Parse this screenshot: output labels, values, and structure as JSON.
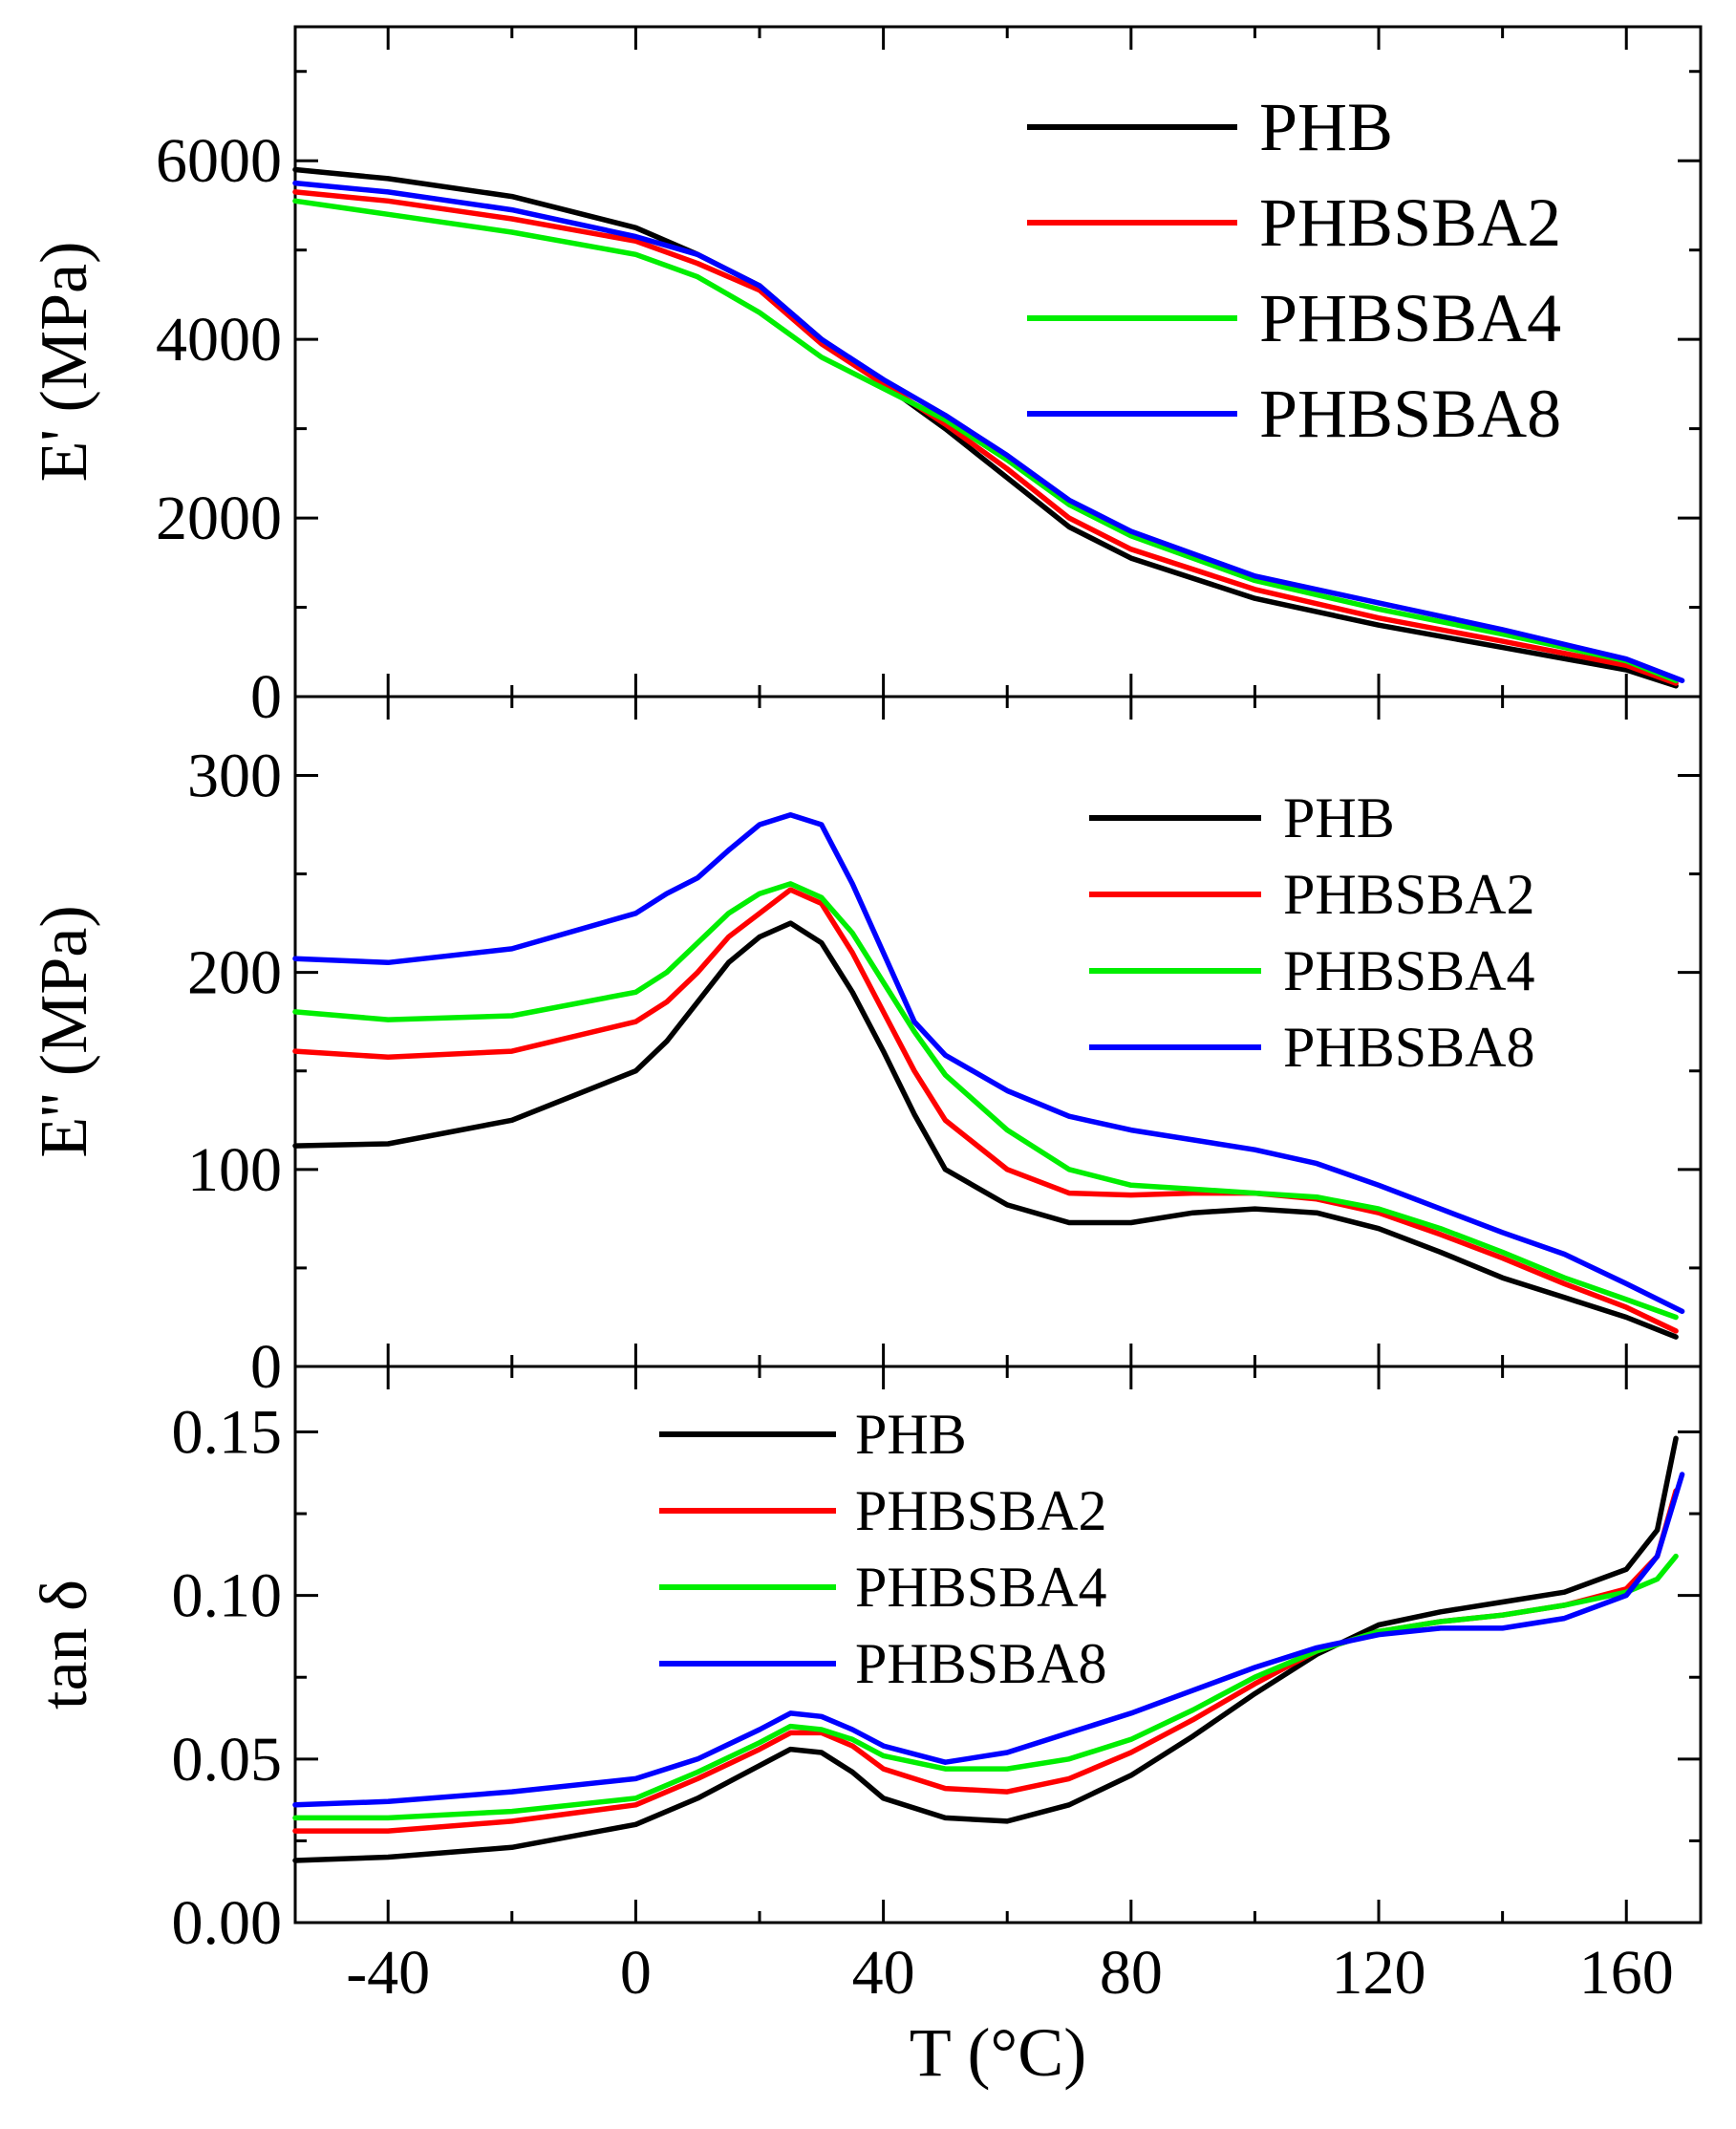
{
  "colors": {
    "PHB": "#000000",
    "PHBSBA2": "#ff0000",
    "PHBSBA4": "#00ee00",
    "PHBSBA8": "#0000ff"
  },
  "chart_data": [
    {
      "type": "line",
      "ylabel": "E' (MPa)",
      "xlabel": "",
      "xlim": [
        -55,
        172
      ],
      "ylim": [
        0,
        7500
      ],
      "xticks": [
        -40,
        0,
        40,
        80,
        120,
        160
      ],
      "yticks": [
        0,
        2000,
        4000,
        6000
      ],
      "ytick_labels": [
        "0",
        "2000",
        "4000",
        "6000"
      ],
      "legend_position": "top-right",
      "series": [
        {
          "name": "PHB",
          "x": [
            -55,
            -40,
            -20,
            0,
            10,
            20,
            30,
            40,
            50,
            60,
            70,
            80,
            100,
            120,
            140,
            160,
            168
          ],
          "y": [
            5900,
            5800,
            5600,
            5250,
            4950,
            4600,
            4000,
            3500,
            3000,
            2450,
            1900,
            1550,
            1100,
            800,
            550,
            300,
            120
          ]
        },
        {
          "name": "PHBSBA2",
          "x": [
            -55,
            -40,
            -20,
            0,
            10,
            20,
            30,
            40,
            50,
            60,
            70,
            80,
            100,
            120,
            140,
            160,
            168
          ],
          "y": [
            5650,
            5550,
            5350,
            5100,
            4850,
            4550,
            3950,
            3500,
            3050,
            2550,
            2000,
            1650,
            1200,
            880,
            620,
            350,
            150
          ]
        },
        {
          "name": "PHBSBA4",
          "x": [
            -55,
            -40,
            -20,
            0,
            10,
            20,
            30,
            40,
            50,
            60,
            70,
            80,
            100,
            120,
            140,
            160,
            168
          ],
          "y": [
            5550,
            5400,
            5200,
            4950,
            4700,
            4300,
            3800,
            3450,
            3100,
            2650,
            2150,
            1800,
            1300,
            980,
            700,
            400,
            180
          ]
        },
        {
          "name": "PHBSBA8",
          "x": [
            -55,
            -40,
            -20,
            0,
            10,
            20,
            30,
            40,
            50,
            60,
            70,
            80,
            100,
            120,
            140,
            160,
            169
          ],
          "y": [
            5750,
            5650,
            5450,
            5150,
            4950,
            4600,
            4000,
            3550,
            3150,
            2700,
            2200,
            1850,
            1350,
            1050,
            750,
            420,
            180
          ]
        }
      ]
    },
    {
      "type": "line",
      "ylabel": "E'' (MPa)",
      "xlabel": "",
      "xlim": [
        -55,
        172
      ],
      "ylim": [
        0,
        340
      ],
      "xticks": [
        -40,
        0,
        40,
        80,
        120,
        160
      ],
      "yticks": [
        0,
        100,
        200,
        300
      ],
      "ytick_labels": [
        "0",
        "100",
        "200",
        "300"
      ],
      "legend_position": "top-right",
      "series": [
        {
          "name": "PHB",
          "x": [
            -55,
            -40,
            -20,
            0,
            5,
            10,
            15,
            20,
            25,
            30,
            35,
            40,
            45,
            50,
            60,
            70,
            80,
            90,
            100,
            110,
            120,
            130,
            140,
            150,
            160,
            168
          ],
          "y": [
            112,
            113,
            125,
            150,
            165,
            185,
            205,
            218,
            225,
            215,
            190,
            160,
            128,
            100,
            82,
            73,
            73,
            78,
            80,
            78,
            70,
            58,
            45,
            35,
            25,
            15
          ]
        },
        {
          "name": "PHBSBA2",
          "x": [
            -55,
            -40,
            -20,
            0,
            5,
            10,
            15,
            20,
            25,
            30,
            35,
            40,
            45,
            50,
            60,
            70,
            80,
            90,
            100,
            110,
            120,
            130,
            140,
            150,
            160,
            168
          ],
          "y": [
            160,
            157,
            160,
            175,
            185,
            200,
            218,
            230,
            242,
            235,
            210,
            180,
            150,
            125,
            100,
            88,
            87,
            88,
            88,
            85,
            78,
            67,
            55,
            42,
            30,
            18
          ]
        },
        {
          "name": "PHBSBA4",
          "x": [
            -55,
            -40,
            -20,
            0,
            5,
            10,
            15,
            20,
            25,
            30,
            35,
            40,
            45,
            50,
            60,
            70,
            80,
            90,
            100,
            110,
            120,
            130,
            140,
            150,
            160,
            168
          ],
          "y": [
            180,
            176,
            178,
            190,
            200,
            215,
            230,
            240,
            245,
            238,
            220,
            195,
            170,
            148,
            120,
            100,
            92,
            90,
            88,
            86,
            80,
            70,
            58,
            45,
            34,
            25
          ]
        },
        {
          "name": "PHBSBA8",
          "x": [
            -55,
            -40,
            -20,
            0,
            5,
            10,
            15,
            20,
            25,
            30,
            35,
            40,
            45,
            50,
            60,
            70,
            80,
            90,
            100,
            110,
            120,
            130,
            140,
            150,
            160,
            169
          ],
          "y": [
            207,
            205,
            212,
            230,
            240,
            248,
            262,
            275,
            280,
            275,
            245,
            210,
            175,
            158,
            140,
            127,
            120,
            115,
            110,
            103,
            92,
            80,
            68,
            57,
            42,
            28
          ]
        }
      ]
    },
    {
      "type": "line",
      "ylabel": "tan δ",
      "xlabel": "T (°C)",
      "xlim": [
        -55,
        172
      ],
      "ylim": [
        0,
        0.17
      ],
      "xticks": [
        -40,
        0,
        40,
        80,
        120,
        160
      ],
      "xtick_labels": [
        "-40",
        "0",
        "40",
        "80",
        "120",
        "160"
      ],
      "yticks": [
        0,
        0.05,
        0.1,
        0.15
      ],
      "ytick_labels": [
        "0.00",
        "0.05",
        "0.10",
        "0.15"
      ],
      "legend_position": "top-center",
      "series": [
        {
          "name": "PHB",
          "x": [
            -55,
            -40,
            -20,
            0,
            10,
            20,
            25,
            30,
            35,
            40,
            50,
            60,
            70,
            80,
            90,
            100,
            110,
            120,
            130,
            140,
            150,
            160,
            165,
            168
          ],
          "y": [
            0.019,
            0.02,
            0.023,
            0.03,
            0.038,
            0.048,
            0.053,
            0.052,
            0.046,
            0.038,
            0.032,
            0.031,
            0.036,
            0.045,
            0.057,
            0.07,
            0.082,
            0.091,
            0.095,
            0.098,
            0.101,
            0.108,
            0.12,
            0.148
          ]
        },
        {
          "name": "PHBSBA2",
          "x": [
            -55,
            -40,
            -20,
            0,
            10,
            20,
            25,
            30,
            35,
            40,
            50,
            60,
            70,
            80,
            90,
            100,
            110,
            120,
            130,
            140,
            150,
            160,
            165,
            168
          ],
          "y": [
            0.028,
            0.028,
            0.031,
            0.036,
            0.044,
            0.053,
            0.058,
            0.058,
            0.054,
            0.047,
            0.041,
            0.04,
            0.044,
            0.052,
            0.062,
            0.073,
            0.083,
            0.089,
            0.092,
            0.094,
            0.097,
            0.102,
            0.112,
            0.132
          ]
        },
        {
          "name": "PHBSBA4",
          "x": [
            -55,
            -40,
            -20,
            0,
            10,
            20,
            25,
            30,
            35,
            40,
            50,
            60,
            70,
            80,
            90,
            100,
            110,
            120,
            130,
            140,
            150,
            160,
            165,
            168
          ],
          "y": [
            0.032,
            0.032,
            0.034,
            0.038,
            0.046,
            0.055,
            0.06,
            0.059,
            0.056,
            0.051,
            0.047,
            0.047,
            0.05,
            0.056,
            0.065,
            0.075,
            0.083,
            0.089,
            0.092,
            0.094,
            0.097,
            0.101,
            0.105,
            0.112
          ]
        },
        {
          "name": "PHBSBA8",
          "x": [
            -55,
            -40,
            -20,
            0,
            10,
            20,
            25,
            30,
            35,
            40,
            50,
            60,
            70,
            80,
            90,
            100,
            110,
            120,
            130,
            140,
            150,
            160,
            165,
            169
          ],
          "y": [
            0.036,
            0.037,
            0.04,
            0.044,
            0.05,
            0.059,
            0.064,
            0.063,
            0.059,
            0.054,
            0.049,
            0.052,
            0.058,
            0.064,
            0.071,
            0.078,
            0.084,
            0.088,
            0.09,
            0.09,
            0.093,
            0.1,
            0.112,
            0.137
          ]
        }
      ]
    }
  ]
}
